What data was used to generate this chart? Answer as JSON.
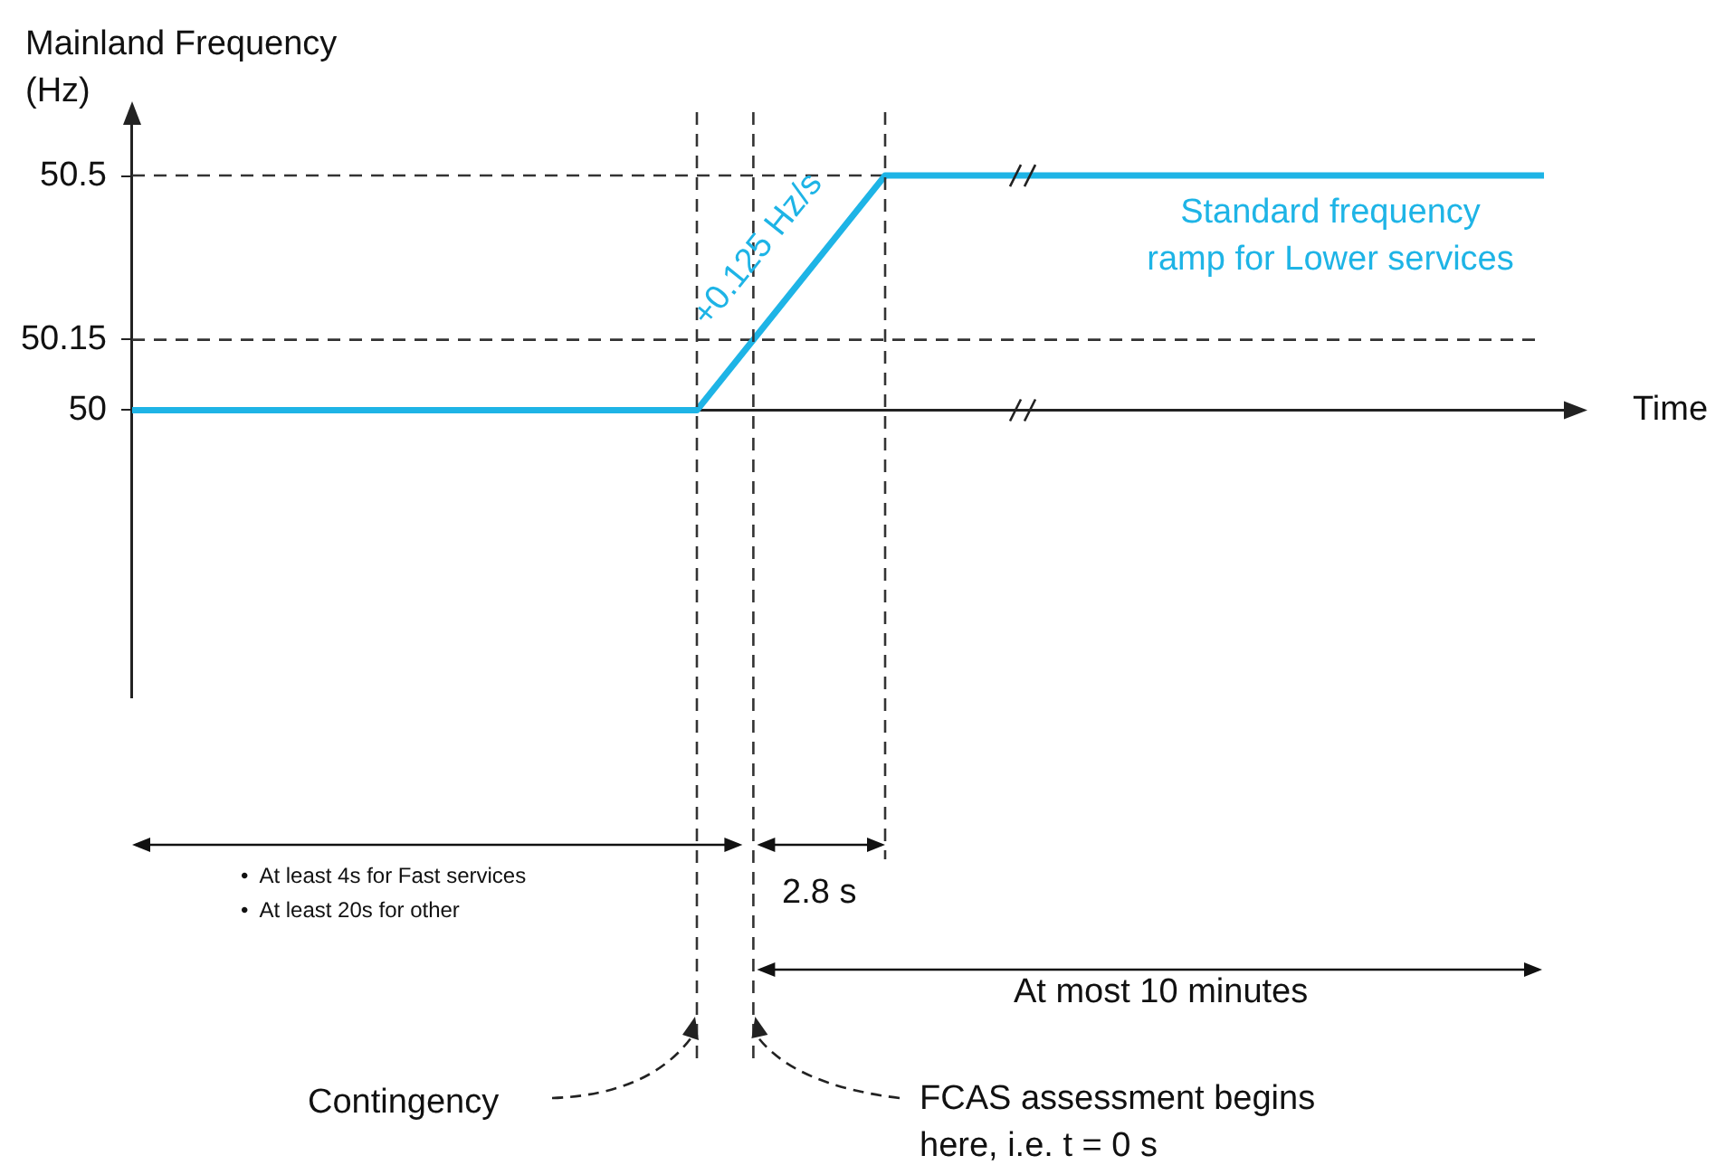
{
  "chart_data": {
    "type": "line",
    "ylabel": "Mainland Frequency (Hz)",
    "categories": [
      null,
      null,
      null,
      null,
      null,
      null,
      null,
      null,
      null,
      null,
      null,
      null,
      null,
      null,
      null,
      null
    ],
    "series": [
      {
        "color": "#1eb4e6",
        "values": [
          50,
          50,
          50,
          50,
          50,
          50,
          50,
          50.25,
          50.5,
          50.5,
          50.5,
          50.5,
          50.5,
          50.5,
          50.5,
          50.5
        ]
      }
    ],
    "ylim": [
      49.39,
      50.635
    ],
    "yticks": [
      50,
      50.15,
      50.5
    ],
    "tick_labels": "y",
    "grid": false,
    "legend": false,
    "marker": "none",
    "line_style": "solid",
    "ref_lines": [
      {
        "axis": "y",
        "value": 50,
        "line_style": "solid",
        "color": "#222222"
      },
      {
        "axis": "y",
        "value": 50.5,
        "line_style": "dashed",
        "color": "#333333"
      },
      {
        "axis": "y",
        "value": 50.15,
        "line_style": "dashed",
        "color": "#333333"
      }
    ],
    "annotations": [
      "+0.125 Hz/s",
      "Standard frequency ramp for Lower services",
      "•  At least 4s for Fast services",
      "•  At least 20s for other",
      "2.8 s",
      "At most 10 minutes",
      "Contingency",
      "FCAS assessment begins here, i.e. t = 0 s",
      "Time"
    ]
  }
}
